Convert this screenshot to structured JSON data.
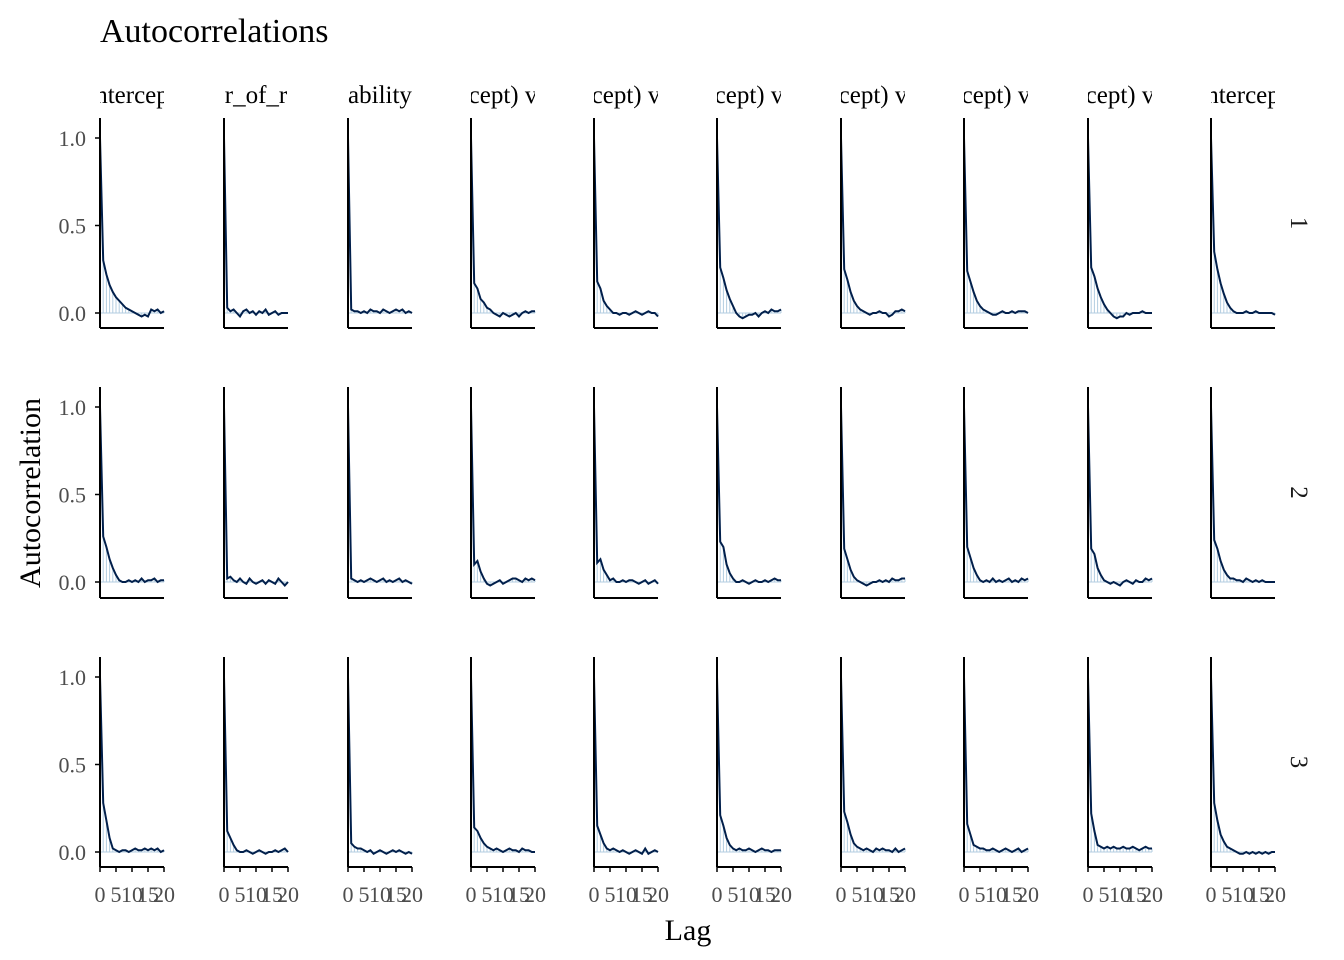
{
  "title": "Autocorrelations",
  "xlabel": "Lag",
  "ylabel": "Autocorrelation",
  "colors": {
    "line": "#011f4b",
    "bars": "#b3cde0",
    "axis": "#000000",
    "zero": "#b3cde0"
  },
  "chart_data": {
    "type": "line",
    "xlim": [
      0,
      20
    ],
    "ylim": [
      -0.05,
      1.1
    ],
    "x_ticks": [
      "0",
      "5",
      "10",
      "15",
      "20"
    ],
    "y_ticks": [
      "0.0",
      "0.5",
      "1.0"
    ],
    "column_labels": [
      "ntercep",
      "r_of_r",
      "ability",
      "cept) v",
      "cept) v",
      "cept) v",
      "cept) v",
      "cept) v",
      "cept) v",
      "ntercep"
    ],
    "row_labels": [
      "1",
      "2",
      "3"
    ],
    "panels": [
      [
        {
          "values": [
            1,
            0.3,
            0.22,
            0.16,
            0.12,
            0.09,
            0.07,
            0.05,
            0.03,
            0.02,
            0.01,
            0,
            -0.01,
            -0.02,
            -0.01,
            -0.02,
            0.02,
            0.01,
            0.02,
            0,
            0.01
          ]
        },
        {
          "values": [
            1,
            0.03,
            0.01,
            0.02,
            0,
            -0.02,
            0.01,
            0.02,
            0,
            0.01,
            -0.01,
            0.01,
            0,
            0.02,
            -0.01,
            0,
            0.01,
            -0.01,
            0,
            0,
            0
          ]
        },
        {
          "values": [
            1,
            0.02,
            0.01,
            0.01,
            0,
            0.01,
            0,
            0.02,
            0.01,
            0.01,
            0,
            0.02,
            0.01,
            0,
            0.01,
            0.02,
            0.01,
            0.02,
            0,
            0.01,
            0
          ]
        },
        {
          "values": [
            1,
            0.17,
            0.14,
            0.08,
            0.06,
            0.03,
            0.02,
            0,
            -0.01,
            -0.02,
            0,
            -0.01,
            -0.02,
            -0.01,
            0,
            -0.02,
            0,
            0.01,
            0,
            0.01,
            0.01
          ]
        },
        {
          "values": [
            1,
            0.18,
            0.14,
            0.07,
            0.04,
            0.02,
            0,
            0,
            -0.01,
            0,
            0,
            -0.01,
            0,
            0.01,
            0,
            -0.01,
            0,
            0.01,
            0,
            0,
            -0.02
          ]
        },
        {
          "values": [
            1,
            0.26,
            0.2,
            0.13,
            0.08,
            0.04,
            0,
            -0.02,
            -0.03,
            -0.02,
            -0.01,
            -0.01,
            0,
            -0.02,
            0,
            0.01,
            0,
            0.02,
            0.01,
            0.01,
            0.02
          ]
        },
        {
          "values": [
            1,
            0.25,
            0.19,
            0.12,
            0.07,
            0.04,
            0.02,
            0.01,
            0,
            -0.01,
            0,
            0,
            0.01,
            0,
            0,
            -0.02,
            -0.01,
            0.01,
            0.01,
            0.02,
            0.01
          ]
        },
        {
          "values": [
            1,
            0.24,
            0.18,
            0.12,
            0.07,
            0.04,
            0.02,
            0.01,
            0,
            -0.01,
            -0.01,
            0,
            0.01,
            0,
            0,
            0.01,
            0,
            0.01,
            0.01,
            0.01,
            0
          ]
        },
        {
          "values": [
            1,
            0.26,
            0.21,
            0.14,
            0.09,
            0.05,
            0.02,
            0,
            -0.02,
            -0.03,
            -0.02,
            -0.02,
            0,
            -0.01,
            0,
            0,
            0,
            0.01,
            0,
            0,
            0
          ]
        },
        {
          "values": [
            1,
            0.35,
            0.25,
            0.17,
            0.11,
            0.06,
            0.03,
            0.01,
            0,
            0,
            0,
            0.01,
            0,
            0,
            0.01,
            0,
            0,
            0,
            0,
            0,
            -0.01
          ]
        }
      ],
      [
        {
          "values": [
            1,
            0.26,
            0.2,
            0.13,
            0.08,
            0.04,
            0.01,
            0,
            0,
            0.01,
            0,
            0.01,
            0,
            0.02,
            0,
            0.01,
            0.01,
            0.02,
            0,
            0.01,
            0.01
          ]
        },
        {
          "values": [
            1,
            0.02,
            0.03,
            0.01,
            0,
            0.02,
            0,
            -0.01,
            0.02,
            0,
            -0.01,
            0,
            0.01,
            -0.01,
            0.01,
            0,
            -0.01,
            0.02,
            0,
            -0.02,
            0
          ]
        },
        {
          "values": [
            1,
            0.02,
            0.01,
            0,
            0.01,
            0,
            0.01,
            0.02,
            0.01,
            0,
            0.01,
            0.02,
            0,
            0.01,
            0,
            0.01,
            0.02,
            0,
            0.01,
            0,
            -0.01
          ]
        },
        {
          "values": [
            1,
            0.1,
            0.12,
            0.06,
            0.02,
            -0.01,
            -0.02,
            -0.01,
            0,
            0.01,
            -0.01,
            0,
            0.01,
            0.02,
            0.02,
            0.01,
            0,
            0.02,
            0.01,
            0.02,
            0.01
          ]
        },
        {
          "values": [
            1,
            0.11,
            0.13,
            0.07,
            0.04,
            0.01,
            0.02,
            0,
            0,
            0.01,
            0,
            0.01,
            0.01,
            0,
            -0.01,
            0,
            0.01,
            -0.01,
            0,
            0.01,
            -0.01
          ]
        },
        {
          "values": [
            1,
            0.23,
            0.2,
            0.1,
            0.05,
            0.02,
            0,
            0,
            0.01,
            0,
            -0.01,
            0,
            0.01,
            0,
            0,
            0.01,
            0,
            0.01,
            0.02,
            0.01,
            0.01
          ]
        },
        {
          "values": [
            1,
            0.19,
            0.13,
            0.07,
            0.03,
            0.01,
            0,
            -0.01,
            -0.02,
            -0.01,
            0,
            0,
            0.01,
            0,
            0.01,
            0,
            0.02,
            0.01,
            0.01,
            0.02,
            0.02
          ]
        },
        {
          "values": [
            1,
            0.2,
            0.14,
            0.08,
            0.04,
            0.01,
            0,
            0.01,
            0,
            0.02,
            0,
            0.01,
            0,
            0.01,
            0.02,
            0,
            0.01,
            0,
            0.02,
            0.01,
            0.02
          ]
        },
        {
          "values": [
            1,
            0.19,
            0.16,
            0.08,
            0.04,
            0.01,
            0,
            -0.01,
            0,
            -0.01,
            -0.02,
            0,
            0.01,
            0,
            -0.01,
            0.01,
            0,
            0,
            0.02,
            0.01,
            0.02
          ]
        },
        {
          "values": [
            1,
            0.24,
            0.19,
            0.12,
            0.07,
            0.04,
            0.02,
            0.02,
            0.01,
            0.01,
            0,
            0.02,
            0.01,
            0,
            0.01,
            0,
            0.01,
            0,
            0,
            0,
            0
          ]
        }
      ],
      [
        {
          "values": [
            1,
            0.28,
            0.18,
            0.08,
            0.02,
            0.01,
            0,
            0.01,
            0.01,
            0,
            0.01,
            0.02,
            0.01,
            0.01,
            0.02,
            0.01,
            0.02,
            0.01,
            0.02,
            0,
            0.01
          ]
        },
        {
          "values": [
            1,
            0.12,
            0.08,
            0.04,
            0.01,
            0,
            0,
            0.01,
            0,
            -0.01,
            0,
            0.01,
            0,
            -0.01,
            0,
            0,
            0.01,
            0,
            0.01,
            0.02,
            0
          ]
        },
        {
          "values": [
            1,
            0.05,
            0.03,
            0.02,
            0.02,
            0.01,
            0,
            0.01,
            -0.01,
            0,
            0.01,
            0,
            -0.01,
            0,
            0.01,
            0,
            0.01,
            0,
            -0.01,
            0,
            -0.01
          ]
        },
        {
          "values": [
            1,
            0.14,
            0.12,
            0.08,
            0.05,
            0.03,
            0.02,
            0.01,
            0.02,
            0.01,
            0,
            0.01,
            0.02,
            0.01,
            0.01,
            0,
            0.02,
            0.01,
            0.01,
            0,
            0
          ]
        },
        {
          "values": [
            1,
            0.15,
            0.1,
            0.05,
            0.02,
            0.01,
            0.02,
            0.01,
            0,
            0.01,
            0,
            -0.01,
            0,
            0.01,
            0,
            -0.01,
            0.02,
            -0.01,
            0,
            0.01,
            0
          ]
        },
        {
          "values": [
            1,
            0.21,
            0.15,
            0.08,
            0.04,
            0.02,
            0.01,
            0.02,
            0.01,
            0.01,
            0.02,
            0.01,
            0,
            0.01,
            0.02,
            0.01,
            0.01,
            0,
            0.01,
            0.01,
            0.01
          ]
        },
        {
          "values": [
            1,
            0.23,
            0.17,
            0.1,
            0.05,
            0.03,
            0.02,
            0.01,
            0.02,
            0.01,
            0,
            0.02,
            0.01,
            0.02,
            0.01,
            0.01,
            0,
            0.02,
            0,
            0.01,
            0.02
          ]
        },
        {
          "values": [
            1,
            0.16,
            0.1,
            0.04,
            0.03,
            0.02,
            0.02,
            0.01,
            0.01,
            0.02,
            0.01,
            0,
            0.01,
            0.02,
            0.01,
            0,
            0.01,
            0.02,
            0,
            0.01,
            0.02
          ]
        },
        {
          "values": [
            1,
            0.22,
            0.12,
            0.04,
            0.03,
            0.02,
            0.03,
            0.02,
            0.03,
            0.02,
            0.02,
            0.03,
            0.02,
            0.02,
            0.03,
            0.02,
            0.01,
            0.02,
            0.03,
            0.02,
            0.02
          ]
        },
        {
          "values": [
            1,
            0.28,
            0.18,
            0.1,
            0.06,
            0.03,
            0.02,
            0.01,
            0,
            -0.01,
            -0.01,
            0,
            -0.01,
            0,
            -0.01,
            0,
            -0.01,
            0,
            -0.01,
            0,
            0
          ]
        }
      ]
    ]
  }
}
